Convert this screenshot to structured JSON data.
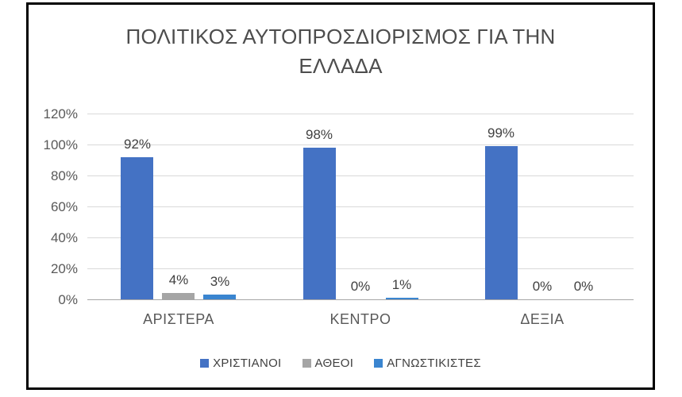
{
  "chart_data": {
    "type": "bar",
    "title": "ΠΟΛΙΤΙΚΟΣ ΑΥΤΟΠΡΟΣΔΙΟΡΙΣΜΟΣ ΓΙΑ ΤΗΝ ΕΛΛΑΔΑ",
    "title_lines": [
      "ΠΟΛΙΤΙΚΟΣ ΑΥΤΟΠΡΟΣΔΙΟΡΙΣΜΟΣ ΓΙΑ ΤΗΝ",
      "ΕΛΛΑΔΑ"
    ],
    "categories": [
      "ΑΡΙΣΤΕΡΑ",
      "ΚΕΝΤΡΟ",
      "ΔΕΞΙΑ"
    ],
    "series": [
      {
        "name": "ΧΡΙΣΤΙΑΝΟΙ",
        "color": "#4472c4",
        "values": [
          92,
          98,
          99
        ],
        "labels": [
          "92%",
          "98%",
          "99%"
        ]
      },
      {
        "name": "ΑΘΕΟΙ",
        "color": "#a5a5a5",
        "values": [
          4,
          0,
          0
        ],
        "labels": [
          "4%",
          "0%",
          "0%"
        ]
      },
      {
        "name": "ΑΓΝΩΣΤΙΚΙΣΤΕΣ",
        "color": "#3a85d0",
        "values": [
          3,
          1,
          0
        ],
        "labels": [
          "3%",
          "1%",
          "0%"
        ]
      }
    ],
    "xlabel": "",
    "ylabel": "",
    "ylim": [
      0,
      120
    ],
    "ytick_step": 20,
    "yticks": [
      "0%",
      "20%",
      "40%",
      "60%",
      "80%",
      "100%",
      "120%"
    ],
    "grid": true,
    "data_labels": true,
    "legend_position": "bottom"
  },
  "colors": {
    "frame_border": "#000000",
    "background": "#ffffff",
    "gridline": "#d9d9d9",
    "axis_line": "#a6a6a6",
    "title_text": "#4d4d4d",
    "tick_text": "#595959",
    "label_text": "#404040"
  }
}
